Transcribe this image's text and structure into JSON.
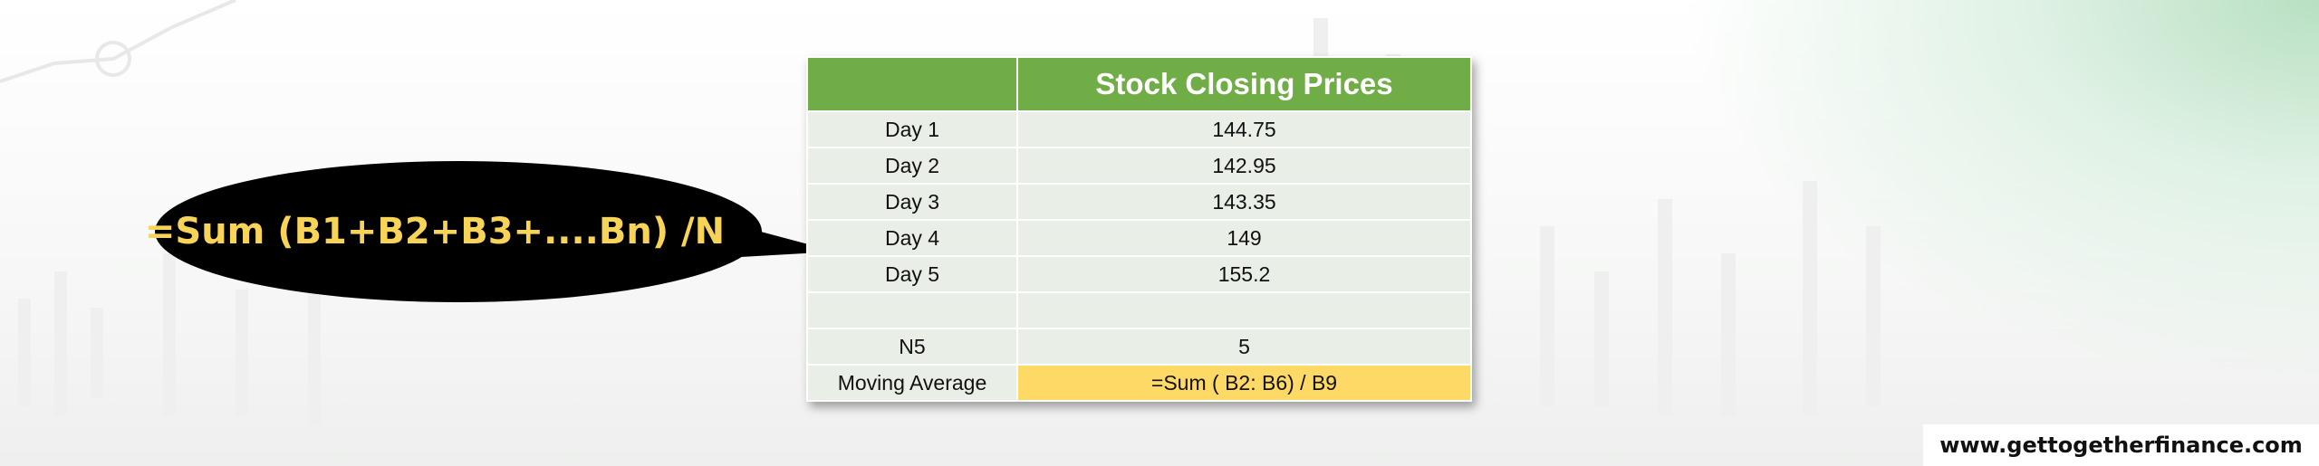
{
  "callout": "=Sum (B1+B2+B3+....Bn) /N",
  "table": {
    "title": "Stock Closing Prices",
    "rows": [
      [
        "Day 1",
        "144.75"
      ],
      [
        "Day 2",
        "142.95"
      ],
      [
        "Day 3",
        "143.35"
      ],
      [
        "Day 4",
        "149"
      ],
      [
        "Day 5",
        "155.2"
      ]
    ],
    "summary": [
      [
        "N5",
        "5"
      ],
      [
        "Moving Average",
        "=Sum ( B2: B6) / B9"
      ]
    ]
  },
  "footer": "www.gettogetherfinance.com"
}
